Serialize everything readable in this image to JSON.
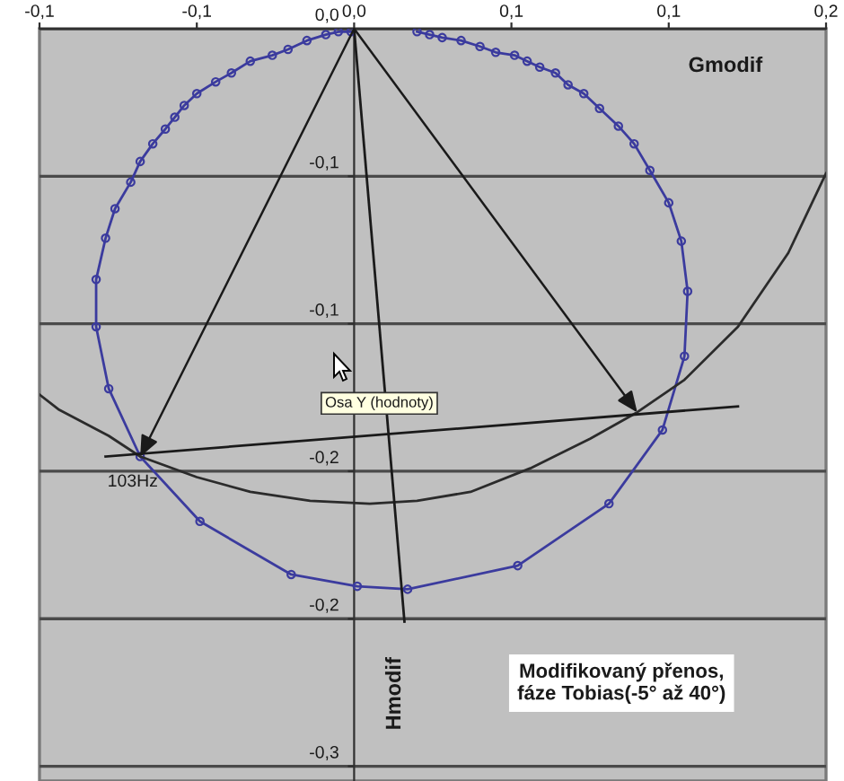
{
  "chart_data": {
    "type": "line",
    "title": "Modifikovaný přenos,\nfáze Tobias(-5° až 40°)",
    "xlabel": "Gmodif",
    "ylabel": "Hmodif",
    "annotations": [
      {
        "text": "103Hz",
        "x": -0.068,
        "y": -0.145
      },
      "Osa Y (hodnoty)"
    ],
    "xlim": [
      -0.1,
      0.15
    ],
    "xticks": [
      {
        "value": -0.1,
        "label": "-0,1"
      },
      {
        "value": -0.05,
        "label": "-0,1"
      },
      {
        "value": 0,
        "label": "0,0"
      },
      {
        "value": 0.05,
        "label": "0,1"
      },
      {
        "value": 0.1,
        "label": "0,1"
      },
      {
        "value": 0.15,
        "label": "0,2"
      }
    ],
    "ylim": [
      -0.255,
      0
    ],
    "yticks": [
      {
        "value": 0,
        "label": "0,0"
      },
      {
        "value": -0.05,
        "label": "-0,1"
      },
      {
        "value": -0.1,
        "label": "-0,1"
      },
      {
        "value": -0.15,
        "label": "-0,2"
      },
      {
        "value": -0.2,
        "label": "-0,2"
      },
      {
        "value": -0.25,
        "label": "-0,3"
      }
    ],
    "grid": "y",
    "series": [
      {
        "color": "#3b3b9e",
        "marker": "circle",
        "x": [
          -0.001,
          -0.005,
          -0.009,
          -0.015,
          -0.021,
          -0.026,
          -0.033,
          -0.039,
          -0.044,
          -0.05,
          -0.054,
          -0.057,
          -0.06,
          -0.064,
          -0.068,
          -0.071,
          -0.076,
          -0.079,
          -0.082,
          -0.082,
          -0.078,
          -0.068,
          -0.049,
          -0.02,
          0.001,
          0.017,
          0.052,
          0.081,
          0.098,
          0.105,
          0.106,
          0.104,
          0.1,
          0.094,
          0.089,
          0.084,
          0.078,
          0.073,
          0.068,
          0.064,
          0.059,
          0.055,
          0.051,
          0.045,
          0.04,
          0.034,
          0.028,
          0.024,
          0.02
        ],
        "values": [
          -0.001,
          -0.001,
          -0.002,
          -0.004,
          -0.007,
          -0.009,
          -0.011,
          -0.015,
          -0.018,
          -0.022,
          -0.026,
          -0.03,
          -0.034,
          -0.039,
          -0.045,
          -0.052,
          -0.061,
          -0.071,
          -0.085,
          -0.101,
          -0.122,
          -0.145,
          -0.167,
          -0.185,
          -0.189,
          -0.19,
          -0.182,
          -0.161,
          -0.136,
          -0.111,
          -0.089,
          -0.072,
          -0.059,
          -0.048,
          -0.039,
          -0.033,
          -0.027,
          -0.022,
          -0.019,
          -0.015,
          -0.013,
          -0.011,
          -0.009,
          -0.008,
          -0.006,
          -0.004,
          -0.003,
          -0.002,
          -0.001
        ]
      },
      {
        "color": "#2b2b2b",
        "x": [
          -0.1,
          -0.094,
          -0.078,
          -0.068,
          -0.05,
          -0.033,
          -0.014,
          0.005,
          0.02,
          0.037,
          0.056,
          0.075,
          0.09,
          0.105,
          0.122,
          0.138,
          0.15
        ],
        "values": [
          -0.124,
          -0.129,
          -0.138,
          -0.145,
          -0.152,
          -0.157,
          -0.16,
          -0.161,
          -0.16,
          -0.157,
          -0.149,
          -0.139,
          -0.13,
          -0.119,
          -0.101,
          -0.076,
          -0.049
        ]
      },
      {
        "color": "#1a1a1a",
        "x": [
          0,
          0.016
        ],
        "values": [
          0,
          -0.201
        ]
      },
      {
        "color": "#1a1a1a",
        "x": [
          -0.079,
          0.122
        ],
        "values": [
          -0.145,
          -0.128
        ]
      }
    ]
  }
}
